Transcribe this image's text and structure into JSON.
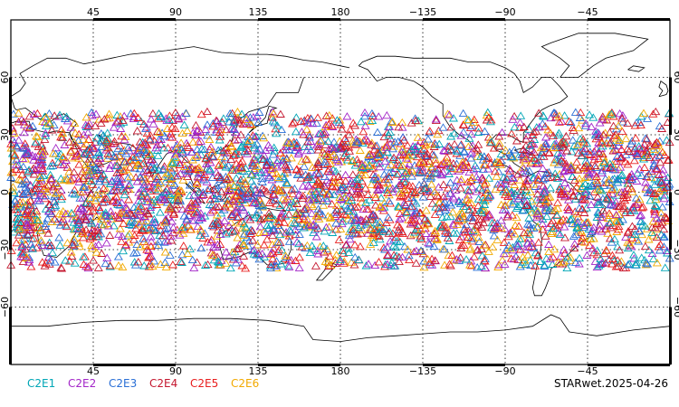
{
  "map": {
    "projection": "cylindrical equidistant",
    "lon_range": [
      0,
      360
    ],
    "lat_range": [
      -90,
      90
    ],
    "grid": "dotted",
    "top_lon_ticks": [
      "45",
      "90",
      "135",
      "180",
      "−135",
      "−90",
      "−45"
    ],
    "bottom_lon_ticks": [
      "45",
      "90",
      "135",
      "180",
      "−135",
      "−90",
      "−45"
    ],
    "left_lat_ticks": [
      "60",
      "30",
      "0",
      "−30",
      "−60"
    ],
    "right_lat_ticks": [
      "60",
      "30",
      "0",
      "−30",
      "−60"
    ],
    "marker": "triangle",
    "observation_band_lat": [
      -40,
      42
    ]
  },
  "legend": [
    {
      "label": "C2E1",
      "color": "#00a6b6"
    },
    {
      "label": "C2E2",
      "color": "#a326c8"
    },
    {
      "label": "C2E3",
      "color": "#2a6fd6"
    },
    {
      "label": "C2E4",
      "color": "#c4172f"
    },
    {
      "label": "C2E5",
      "color": "#e81e1e"
    },
    {
      "label": "C2E6",
      "color": "#f2a900"
    }
  ],
  "footer": {
    "label": "STARwet.2025-04-26"
  }
}
